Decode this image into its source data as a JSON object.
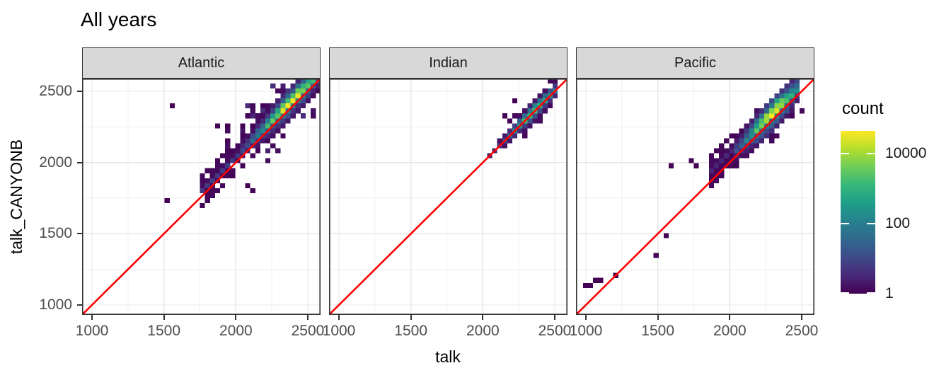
{
  "title": "All years",
  "facets": [
    "Atlantic",
    "Indian",
    "Pacific"
  ],
  "axes": {
    "x_label": "talk",
    "y_label": "talk_CANYONB",
    "x_ticks": [
      1000,
      1500,
      2000,
      2500
    ],
    "y_ticks": [
      1000,
      1500,
      2000,
      2500
    ],
    "x_tick_labels": [
      "1000",
      "1500",
      "2000",
      "2500"
    ],
    "y_tick_labels": [
      "1000",
      "1500",
      "2000",
      "2500"
    ],
    "x_domain": [
      930,
      2589
    ],
    "y_domain": [
      930,
      2589
    ],
    "grid": true
  },
  "reference_line": {
    "type": "identity y=x",
    "color": "#FF0000"
  },
  "legend": {
    "title": "count",
    "position": "right",
    "tick_values": [
      10000,
      100,
      1
    ],
    "tick_labels": [
      "10000",
      "100",
      "1"
    ],
    "scale_max": 44000,
    "scale_min": 1,
    "trans": "log10",
    "viridis": [
      "#440154",
      "#482878",
      "#3E4A89",
      "#31688E",
      "#26828E",
      "#1F9E89",
      "#35B779",
      "#6DCD59",
      "#B4DE2C",
      "#FDE725"
    ]
  },
  "colors": {
    "strip_fill": "#D8D8D8",
    "panel_border": "#333333",
    "grid_major": "#E7E7E7",
    "grid_minor": "#F1F1F1"
  },
  "chart_data": {
    "type": "heatmap",
    "subtype": "bin2d",
    "bin_width": 35,
    "facets": [
      {
        "name": "Atlantic",
        "main_band": {
          "x_start": 2050,
          "x_end": 2565,
          "offset_above_identity": 18,
          "cross_sigma_bins": 1.25,
          "peak_count": 22000,
          "peak_at_frac": 0.62,
          "along_width_frac": 0.35
        },
        "tail_band": {
          "x_start": 1775,
          "x_end": 2055,
          "offset_above_identity": 22,
          "cross_sigma_bins": 0.55,
          "peak_count": 6,
          "flat": true
        },
        "scatter_regions": [
          {
            "n": 48,
            "x_min": 1850,
            "x_max": 2400,
            "dy_min": 40,
            "dy_max": 330,
            "side": "above"
          },
          {
            "n": 12,
            "x_min": 2160,
            "x_max": 2540,
            "dy_min": -220,
            "dy_max": -45,
            "side": "below"
          }
        ],
        "outlier_bins": [
          [
            1540,
            2380
          ],
          [
            1490,
            1730
          ],
          [
            2115,
            1785
          ],
          [
            2077,
            1810
          ],
          [
            1865,
            2252
          ],
          [
            1918,
            2252
          ]
        ]
      },
      {
        "name": "Indian",
        "main_band": {
          "x_start": 2055,
          "x_end": 2495,
          "offset_above_identity": 15,
          "cross_sigma_bins": 0.8,
          "peak_count": 2500,
          "peak_at_frac": 0.65,
          "along_width_frac": 0.3
        },
        "scatter_regions": [],
        "outlier_bins": [
          [
            2136,
            2326
          ],
          [
            2210,
            2400
          ]
        ]
      },
      {
        "name": "Pacific",
        "main_band": {
          "x_start": 2045,
          "x_end": 2475,
          "offset_above_identity": 25,
          "cross_sigma_bins": 1.5,
          "peak_count": 20000,
          "peak_at_frac": 0.55,
          "along_width_frac": 0.33
        },
        "tail_band": {
          "x_start": 1880,
          "x_end": 2050,
          "offset_above_identity": 80,
          "cross_sigma_bins": 0.6,
          "peak_count": 3,
          "flat": true
        },
        "scatter_regions": [
          {
            "n": 10,
            "x_min": 2050,
            "x_max": 2280,
            "dy_min": 50,
            "dy_max": 160,
            "side": "above"
          },
          {
            "n": 10,
            "x_min": 2180,
            "x_max": 2470,
            "dy_min": -150,
            "dy_max": -40,
            "side": "below"
          }
        ],
        "outlier_bins": [
          [
            985,
            1125
          ],
          [
            1015,
            1125
          ],
          [
            1060,
            1160
          ],
          [
            1085,
            1160
          ],
          [
            1205,
            1178
          ],
          [
            1463,
            1347
          ],
          [
            1531,
            1487
          ],
          [
            1590,
            1958
          ],
          [
            1730,
            1978
          ],
          [
            1758,
            1944
          ]
        ]
      }
    ]
  }
}
